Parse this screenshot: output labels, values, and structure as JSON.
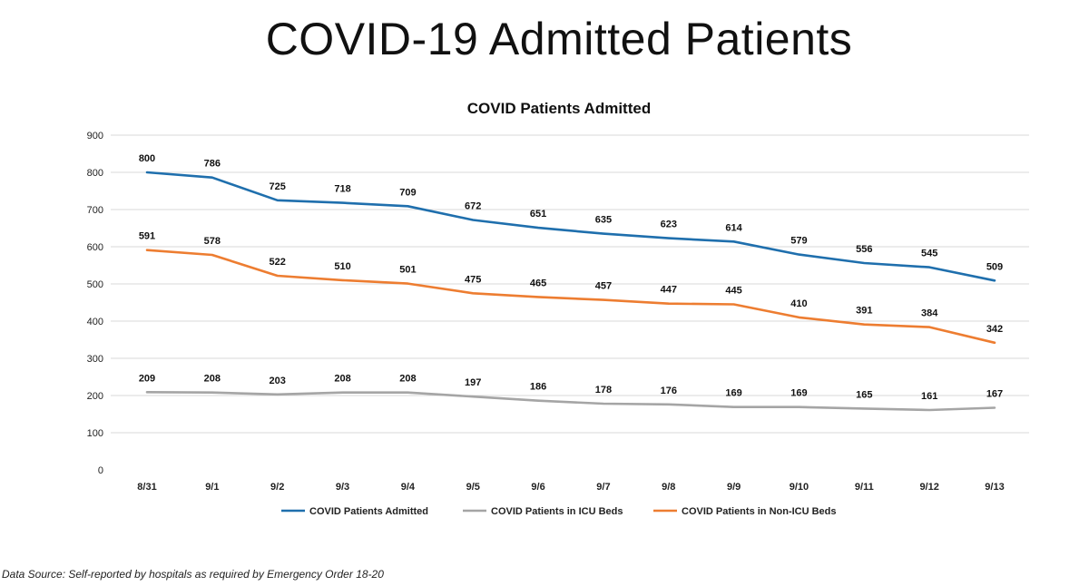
{
  "page_title": "COVID-19 Admitted Patients",
  "footer": {
    "source": "Data Source: Self-reported by hospitals as required by Emergency Order 18-20"
  },
  "chart_data": {
    "type": "line",
    "title": "COVID Patients Admitted",
    "xlabel": "",
    "ylabel": "",
    "ylim": [
      0,
      900
    ],
    "yticks": [
      0,
      100,
      200,
      300,
      400,
      500,
      600,
      700,
      800,
      900
    ],
    "grid": true,
    "legend": "bottom",
    "categories": [
      "8/31",
      "9/1",
      "9/2",
      "9/3",
      "9/4",
      "9/5",
      "9/6",
      "9/7",
      "9/8",
      "9/9",
      "9/10",
      "9/11",
      "9/12",
      "9/13"
    ],
    "series": [
      {
        "name": "COVID Patients Admitted",
        "color": "#1f6fad",
        "values": [
          800,
          786,
          725,
          718,
          709,
          672,
          651,
          635,
          623,
          614,
          579,
          556,
          545,
          509
        ]
      },
      {
        "name": "COVID Patients in ICU Beds",
        "color": "#a5a5a5",
        "values": [
          209,
          208,
          203,
          208,
          208,
          197,
          186,
          178,
          176,
          169,
          169,
          165,
          161,
          167
        ]
      },
      {
        "name": "COVID Patients in Non-ICU Beds",
        "color": "#ed7d31",
        "values": [
          591,
          578,
          522,
          510,
          501,
          475,
          465,
          457,
          447,
          445,
          410,
          391,
          384,
          342
        ]
      }
    ]
  }
}
